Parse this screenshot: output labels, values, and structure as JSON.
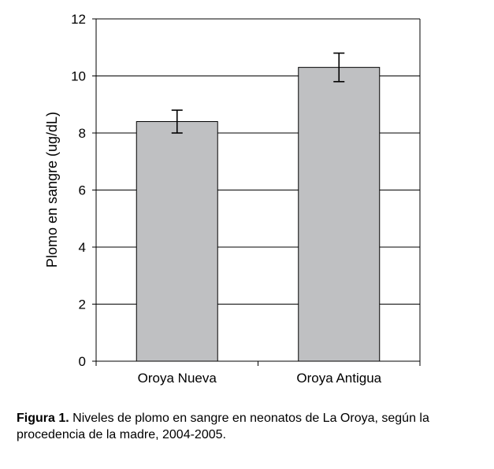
{
  "chart_data": {
    "type": "bar",
    "categories": [
      "Oroya Nueva",
      "Oroya Antigua"
    ],
    "values": [
      8.4,
      10.3
    ],
    "error_bars": [
      {
        "low": 8.0,
        "high": 8.8
      },
      {
        "low": 9.8,
        "high": 10.8
      }
    ],
    "ylabel": "Plomo en sangre (ug/dL)",
    "xlabel": "",
    "ylim": [
      0,
      12
    ],
    "yticks": [
      "0",
      "2",
      "4",
      "6",
      "8",
      "10",
      "12"
    ],
    "grid": true,
    "bar_color": "#bfc0c2"
  },
  "caption": {
    "label": "Figura 1.",
    "text": " Niveles de plomo en sangre en neonatos de La Oroya, según la procedencia de la madre, 2004-2005."
  }
}
